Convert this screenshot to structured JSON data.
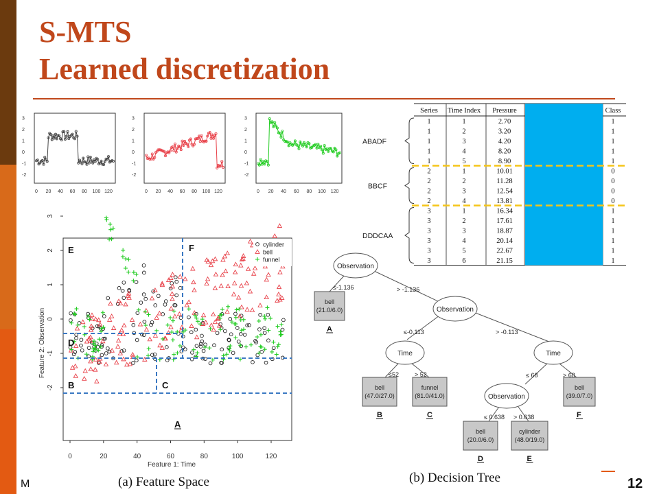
{
  "slide": {
    "title_line1": "S-MTS",
    "title_line2": "Learned discretization",
    "footer_left": "M",
    "page_number": "12"
  },
  "mini_plots": {
    "y_ticks": [
      "3",
      "2",
      "1",
      "0",
      "-1",
      "-2"
    ],
    "x_ticks": [
      "0",
      "20",
      "40",
      "60",
      "80",
      "100",
      "120"
    ],
    "colors": [
      "#444444",
      "#e8424a",
      "#22cc22"
    ]
  },
  "table": {
    "headers": [
      "Series",
      "Time Index",
      "Pressure",
      "",
      "Class"
    ],
    "rows": [
      [
        "1",
        "1",
        "2.70",
        "1"
      ],
      [
        "1",
        "2",
        "3.20",
        "1"
      ],
      [
        "1",
        "3",
        "4.20",
        "1"
      ],
      [
        "1",
        "4",
        "8.20",
        "1"
      ],
      [
        "1",
        "5",
        "8.90",
        "1"
      ],
      [
        "2",
        "1",
        "10.01",
        "0"
      ],
      [
        "2",
        "2",
        "11.28",
        "0"
      ],
      [
        "2",
        "3",
        "12.54",
        "0"
      ],
      [
        "2",
        "4",
        "13.81",
        "0"
      ],
      [
        "3",
        "1",
        "16.34",
        "1"
      ],
      [
        "3",
        "2",
        "17.61",
        "1"
      ],
      [
        "3",
        "3",
        "18.87",
        "1"
      ],
      [
        "3",
        "4",
        "20.14",
        "1"
      ],
      [
        "3",
        "5",
        "22.67",
        "1"
      ],
      [
        "3",
        "6",
        "21.15",
        "1"
      ]
    ],
    "groups": [
      {
        "label": "ABADF"
      },
      {
        "label": "BBCF"
      },
      {
        "label": "DDDCAA"
      }
    ],
    "blue_color": "#00aeef",
    "divider_color": "#f5c518"
  },
  "feature_space": {
    "caption": "(a) Feature Space",
    "xlabel": "Feature 1: Time",
    "ylabel": "Feature 2: Observation",
    "x_ticks": [
      "0",
      "20",
      "40",
      "60",
      "80",
      "100",
      "120"
    ],
    "y_ticks": [
      "3",
      "2",
      "1",
      "0",
      "-1",
      "-2"
    ],
    "legend": [
      {
        "label": "cylinder",
        "color": "#222222",
        "marker": "circle"
      },
      {
        "label": "bell",
        "color": "#e8424a",
        "marker": "triangle"
      },
      {
        "label": "funnel",
        "color": "#22cc22",
        "marker": "plus"
      }
    ],
    "regions": [
      "E",
      "F",
      "D",
      "B",
      "C",
      "A"
    ],
    "split_color": "#3a78c2"
  },
  "decision_tree": {
    "caption": "(b) Decision Tree",
    "nodes": {
      "root": "Observation",
      "obs2": "Observation",
      "time1": "Time",
      "time2": "Time",
      "obs3": "Observation"
    },
    "edges": {
      "root_left": "≤-1.136",
      "root_right": "> -1.136",
      "obs2_left": "≤-0.113",
      "obs2_right": "> -0.113",
      "time1_left": "≤52",
      "time1_right": "> 52",
      "time2_left": "≤ 68",
      "time2_right": "> 68",
      "obs3_left": "≤ 0.638",
      "obs3_right": "> 0.638"
    },
    "leaves": [
      {
        "class": "bell",
        "counts": "(21.0/6.0)",
        "region": "A"
      },
      {
        "class": "bell",
        "counts": "(47.0/27.0)",
        "region": "B"
      },
      {
        "class": "funnel",
        "counts": "(81.0/41.0)",
        "region": "C"
      },
      {
        "class": "bell",
        "counts": "(39.0/7.0)",
        "region": "F"
      },
      {
        "class": "bell",
        "counts": "(20.0/6.0)",
        "region": "D"
      },
      {
        "class": "cylinder",
        "counts": "(48.0/19.0)",
        "region": "E"
      }
    ]
  }
}
